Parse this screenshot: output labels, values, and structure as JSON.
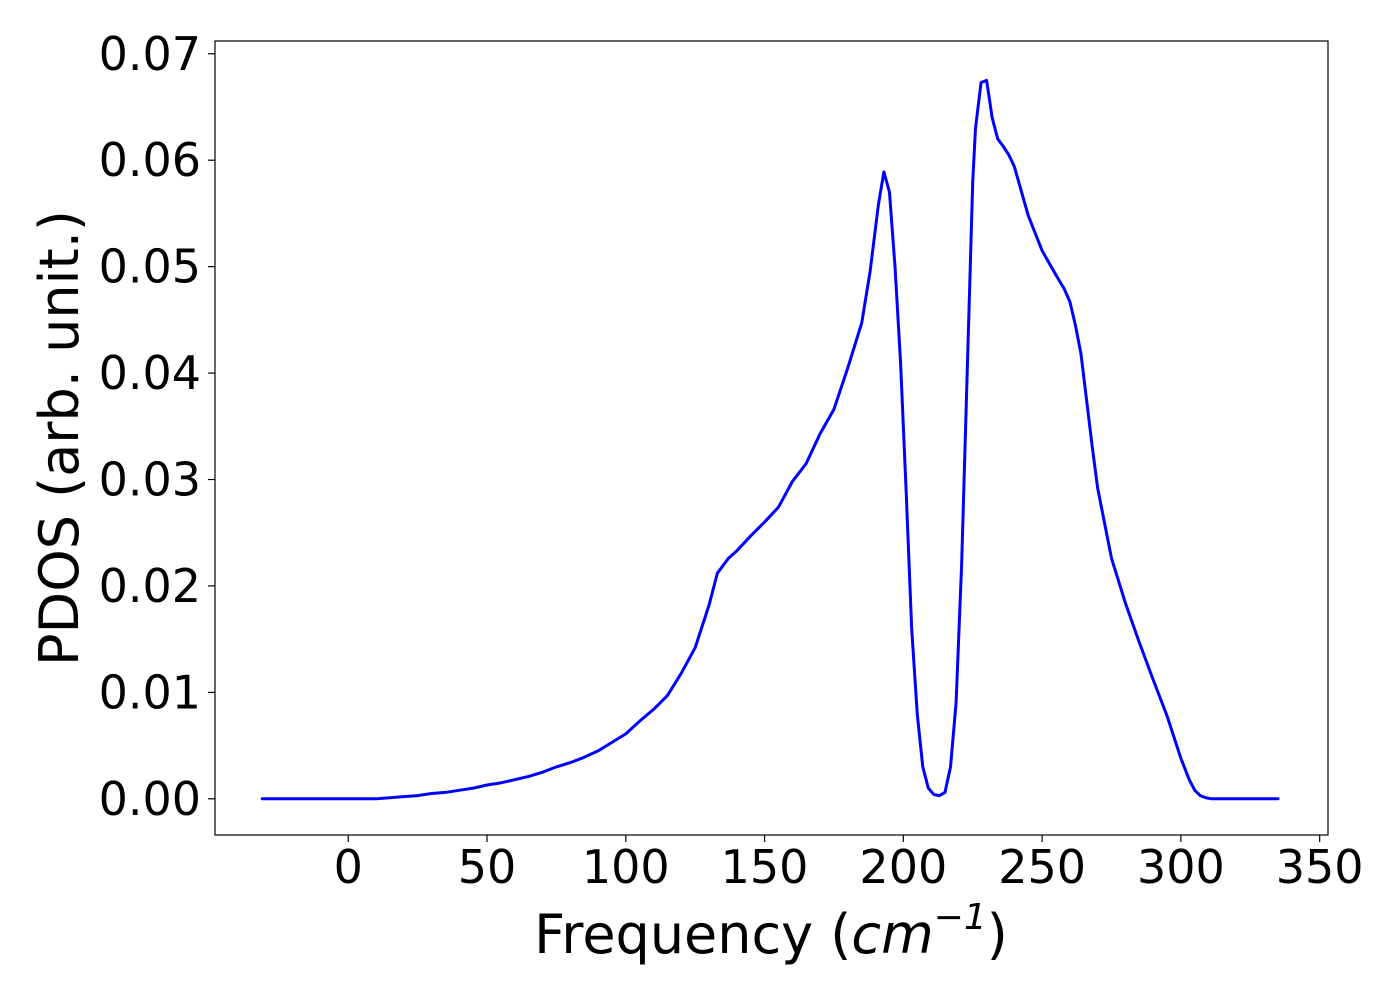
{
  "chart_data": {
    "type": "line",
    "title": "",
    "xlabel": "Frequency (",
    "xlabel_math_base": "cm",
    "xlabel_math_exp": "−1",
    "xlabel_close": ")",
    "ylabel": "PDOS (arb. unit.)",
    "xlim": [
      -48,
      353
    ],
    "ylim": [
      -0.0034,
      0.0712
    ],
    "xticks": [
      0,
      50,
      100,
      150,
      200,
      250,
      300,
      350
    ],
    "xtick_labels": [
      "0",
      "50",
      "100",
      "150",
      "200",
      "250",
      "300",
      "350"
    ],
    "yticks": [
      0.0,
      0.01,
      0.02,
      0.03,
      0.04,
      0.05,
      0.06,
      0.07
    ],
    "ytick_labels": [
      "0.00",
      "0.01",
      "0.02",
      "0.03",
      "0.04",
      "0.05",
      "0.06",
      "0.07"
    ],
    "grid": false,
    "legend": "none",
    "line_color": "#0000ff",
    "series": [
      {
        "x": [
          -31,
          -20,
          -10,
          0,
          10,
          15,
          20,
          25,
          30,
          35,
          40,
          45,
          50,
          55,
          60,
          65,
          70,
          75,
          80,
          85,
          90,
          95,
          100,
          105,
          110,
          115,
          120,
          125,
          130,
          133,
          137,
          140,
          145,
          150,
          155,
          160,
          165,
          170,
          175,
          180,
          185,
          188,
          191,
          193,
          195,
          197,
          199,
          201,
          203,
          205,
          207,
          209,
          211,
          213,
          215,
          217,
          219,
          221,
          223,
          225,
          226,
          228,
          230,
          232,
          234,
          236,
          238,
          240,
          245,
          250,
          255,
          258,
          260,
          262,
          264,
          266,
          268,
          270,
          275,
          280,
          285,
          290,
          295,
          300,
          303,
          305,
          307,
          309,
          311,
          315,
          320,
          325,
          330,
          335
        ],
        "y": [
          0.0,
          0.0,
          0.0,
          0.0,
          0.0,
          0.0001,
          0.0002,
          0.0003,
          0.0005,
          0.0006,
          0.0008,
          0.001,
          0.0013,
          0.0015,
          0.0018,
          0.0021,
          0.0025,
          0.003,
          0.0034,
          0.0039,
          0.0045,
          0.0053,
          0.0061,
          0.0073,
          0.0084,
          0.0097,
          0.0118,
          0.0142,
          0.0182,
          0.0212,
          0.0226,
          0.0233,
          0.0247,
          0.026,
          0.0274,
          0.0298,
          0.0315,
          0.0343,
          0.0366,
          0.0405,
          0.0447,
          0.0495,
          0.0558,
          0.0589,
          0.057,
          0.05,
          0.041,
          0.029,
          0.016,
          0.008,
          0.003,
          0.001,
          0.0004,
          0.0003,
          0.0006,
          0.003,
          0.009,
          0.022,
          0.04,
          0.058,
          0.063,
          0.0673,
          0.0675,
          0.064,
          0.062,
          0.0613,
          0.0605,
          0.0594,
          0.0548,
          0.0515,
          0.0492,
          0.0479,
          0.0467,
          0.0445,
          0.0418,
          0.0375,
          0.0332,
          0.0292,
          0.0226,
          0.0184,
          0.0147,
          0.0112,
          0.0078,
          0.0038,
          0.0018,
          0.0008,
          0.0003,
          0.0001,
          0.0,
          0.0,
          0.0,
          0.0,
          0.0,
          0.0
        ]
      }
    ]
  }
}
